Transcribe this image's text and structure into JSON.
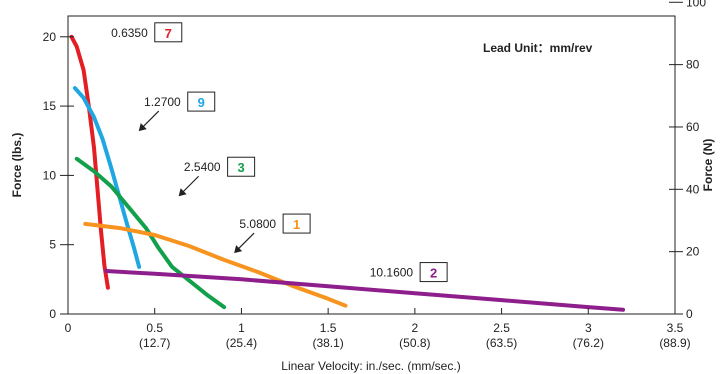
{
  "chart_data": {
    "type": "line",
    "xlabel": "Linear Velocity:  in./sec. (mm/sec.)",
    "ylabel": "Force (lbs.)",
    "y2label": "Force (N)",
    "xlim": [
      0,
      3.5
    ],
    "ylim": [
      0,
      21.5
    ],
    "y2lim": [
      0,
      95.6
    ],
    "x_ticks": [
      {
        "value": 0,
        "label": "0",
        "sublabel": ""
      },
      {
        "value": 0.5,
        "label": "0.5",
        "sublabel": "(12.7)"
      },
      {
        "value": 1,
        "label": "1",
        "sublabel": "(25.4)"
      },
      {
        "value": 1.5,
        "label": "1.5",
        "sublabel": "(38.1)"
      },
      {
        "value": 2,
        "label": "2",
        "sublabel": "(50.8)"
      },
      {
        "value": 2.5,
        "label": "2.5",
        "sublabel": "(63.5)"
      },
      {
        "value": 3,
        "label": "3",
        "sublabel": "(76.2)"
      },
      {
        "value": 3.5,
        "label": "3.5",
        "sublabel": "(88.9)"
      }
    ],
    "y_ticks": [
      {
        "value": 0,
        "label": "0"
      },
      {
        "value": 5,
        "label": "5"
      },
      {
        "value": 10,
        "label": "10"
      },
      {
        "value": 15,
        "label": "15"
      },
      {
        "value": 20,
        "label": "20"
      }
    ],
    "y2_ticks": [
      {
        "value": 0,
        "label": "0"
      },
      {
        "value": 20,
        "label": "20"
      },
      {
        "value": 40,
        "label": "40"
      },
      {
        "value": 60,
        "label": "60"
      },
      {
        "value": 80,
        "label": "80"
      },
      {
        "value": 100,
        "label": "100"
      }
    ],
    "legend_title": "Lead Unit：mm/rev",
    "grid": false,
    "series": [
      {
        "lead": "0.6350",
        "id": "7",
        "color": "#e31e24",
        "x": [
          0.02,
          0.05,
          0.09,
          0.12,
          0.15,
          0.17,
          0.19,
          0.21,
          0.23
        ],
        "y": [
          20.0,
          19.3,
          17.6,
          15.0,
          12.0,
          9.0,
          6.0,
          3.5,
          1.9
        ],
        "label_at": [
          0.46,
          20.0
        ],
        "arrow": false
      },
      {
        "lead": "1.2700",
        "id": "9",
        "color": "#1ea7e1",
        "x": [
          0.04,
          0.09,
          0.15,
          0.2,
          0.25,
          0.3,
          0.34,
          0.38,
          0.41
        ],
        "y": [
          16.3,
          15.6,
          14.2,
          12.6,
          10.5,
          8.3,
          6.5,
          4.8,
          3.4
        ],
        "label_at": [
          0.65,
          15.0
        ],
        "arrow": true
      },
      {
        "lead": "2.5400",
        "id": "3",
        "color": "#12a04b",
        "x": [
          0.05,
          0.15,
          0.25,
          0.35,
          0.45,
          0.52,
          0.6,
          0.7,
          0.8,
          0.9
        ],
        "y": [
          11.2,
          10.3,
          9.2,
          7.7,
          6.2,
          4.8,
          3.4,
          2.4,
          1.4,
          0.5
        ],
        "label_at": [
          0.88,
          10.3
        ],
        "arrow": true
      },
      {
        "lead": "5.0800",
        "id": "1",
        "color": "#f7931e",
        "x": [
          0.1,
          0.3,
          0.5,
          0.7,
          0.9,
          1.1,
          1.3,
          1.5,
          1.6
        ],
        "y": [
          6.5,
          6.2,
          5.7,
          4.9,
          3.9,
          3.0,
          2.0,
          1.1,
          0.6
        ],
        "label_at": [
          1.2,
          6.2
        ],
        "arrow": true
      },
      {
        "lead": "10.1600",
        "id": "2",
        "color": "#8e1e8c",
        "x": [
          0.22,
          0.5,
          1.0,
          1.5,
          2.0,
          2.5,
          3.0,
          3.2
        ],
        "y": [
          3.1,
          2.9,
          2.5,
          2.0,
          1.5,
          1.0,
          0.5,
          0.3
        ],
        "label_at": [
          1.99,
          2.7
        ],
        "arrow": false
      }
    ]
  }
}
